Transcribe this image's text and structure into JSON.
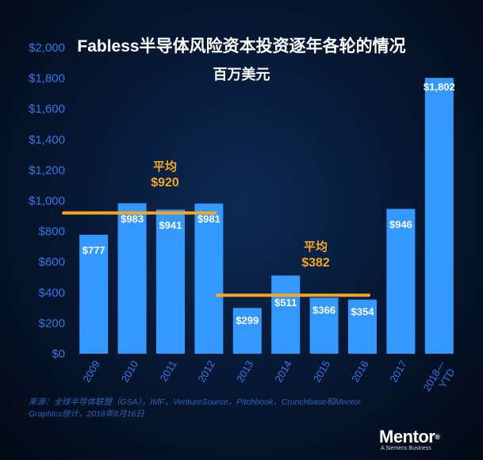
{
  "chart_data": {
    "type": "bar",
    "title": "Fabless半导体风险资本投资逐年各轮的情况",
    "subtitle": "百万美元",
    "categories": [
      "2009",
      "2010",
      "2011",
      "2012",
      "2013",
      "2014",
      "2015",
      "2016",
      "2017",
      "2018—YTD"
    ],
    "values": [
      777,
      983,
      941,
      981,
      299,
      511,
      366,
      354,
      946,
      1802
    ],
    "value_labels": [
      "$777",
      "$983",
      "$941",
      "$981",
      "$299",
      "$511",
      "$366",
      "$354",
      "$946",
      "$1,802"
    ],
    "y_ticks": [
      "$0",
      "$200",
      "$400",
      "$600",
      "$800",
      "$1,000",
      "$1,200",
      "$1,400",
      "$1,600",
      "$1,800",
      "$2,000"
    ],
    "ylim": [
      0,
      2000
    ],
    "grid": false,
    "legend": "none",
    "bar_color": "#3399ff",
    "average_color": "#f5a623",
    "averages": [
      {
        "label": "平均",
        "value_label": "$920",
        "value": 920,
        "from": "2009",
        "to": "2012"
      },
      {
        "label": "平均",
        "value_label": "$382",
        "value": 382,
        "from": "2013",
        "to": "2016"
      }
    ]
  },
  "source_note": "来源：全球半导体联盟（GSA），IMF，VentureSource，Pitchbook，Crunchbase和Mentor Graphics统计，2018年8月16日",
  "logo": {
    "word": "Mentor",
    "mark": "®",
    "tagline": "A Siemens Business"
  }
}
